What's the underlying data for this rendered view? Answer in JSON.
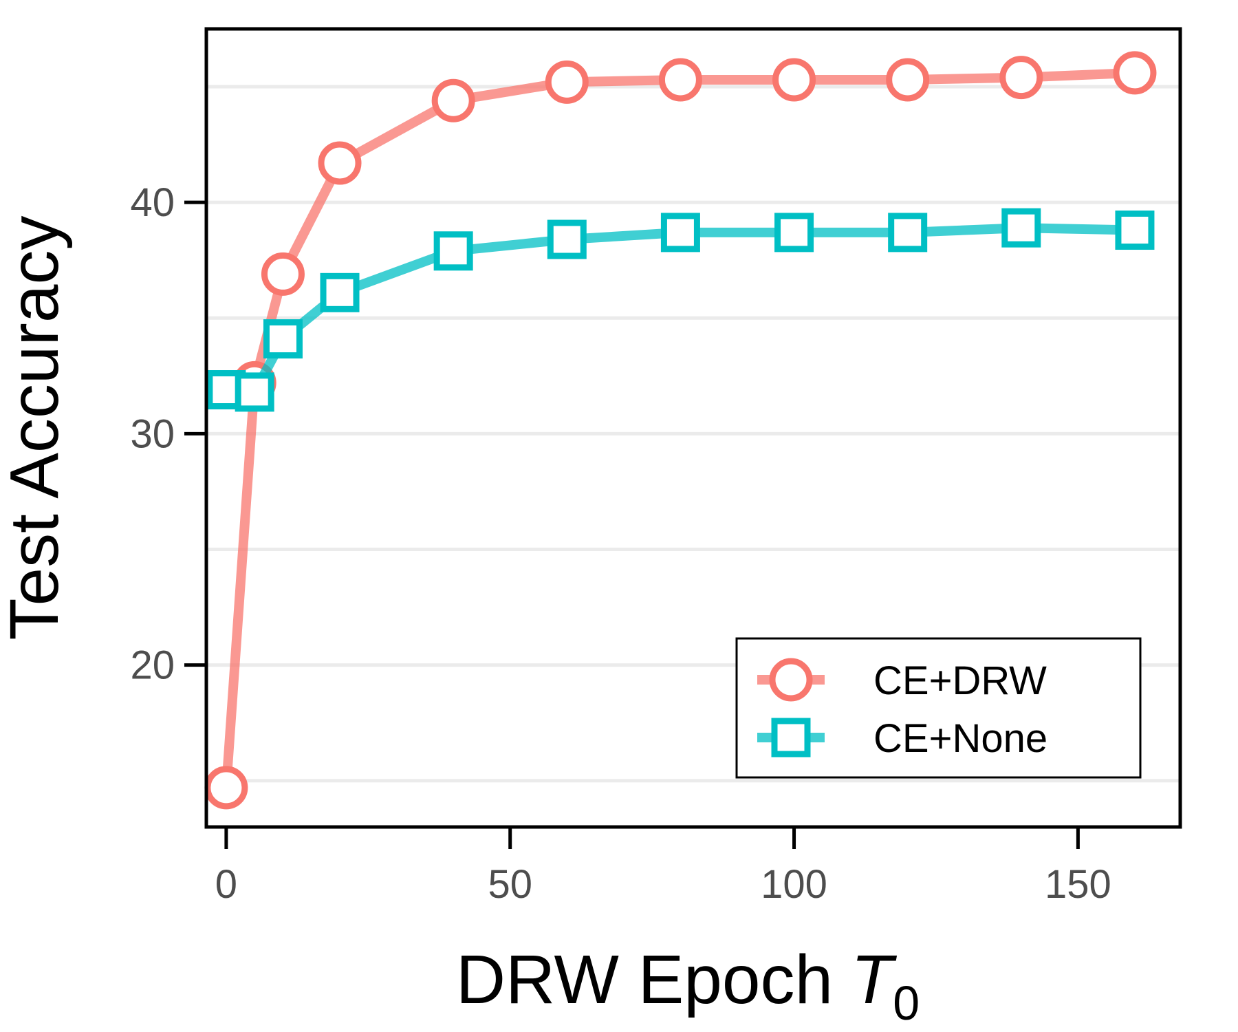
{
  "chart_data": {
    "type": "line",
    "title": "",
    "xlabel": "DRW Epoch",
    "xlabel_symbol": "T",
    "xlabel_subscript": "0",
    "ylabel": "Test Accuracy",
    "xlim": [
      -3.5,
      168
    ],
    "ylim": [
      13,
      47.5
    ],
    "xticks": [
      0,
      50,
      100,
      150
    ],
    "xtick_labels": [
      "0",
      "50",
      "100",
      "150"
    ],
    "yticks": [
      20,
      30,
      40
    ],
    "ytick_labels": [
      "20",
      "30",
      "40"
    ],
    "minor_gridlines_y": [
      15,
      25,
      35,
      45
    ],
    "grid": "horizontal",
    "legend_position": "bottom-right",
    "series": [
      {
        "name": "CE+DRW",
        "marker": "circle",
        "color": "#f8766d",
        "x": [
          0,
          5,
          10,
          20,
          40,
          60,
          80,
          100,
          120,
          140,
          160
        ],
        "y": [
          14.7,
          32.2,
          36.9,
          41.7,
          44.4,
          45.2,
          45.3,
          45.3,
          45.3,
          45.4,
          45.6
        ]
      },
      {
        "name": "CE+None",
        "marker": "square",
        "color": "#00bfc4",
        "x": [
          0,
          5,
          10,
          20,
          40,
          60,
          80,
          100,
          120,
          140,
          160
        ],
        "y": [
          31.9,
          31.8,
          34.1,
          36.1,
          37.9,
          38.4,
          38.7,
          38.7,
          38.7,
          38.9,
          38.8
        ]
      }
    ]
  }
}
